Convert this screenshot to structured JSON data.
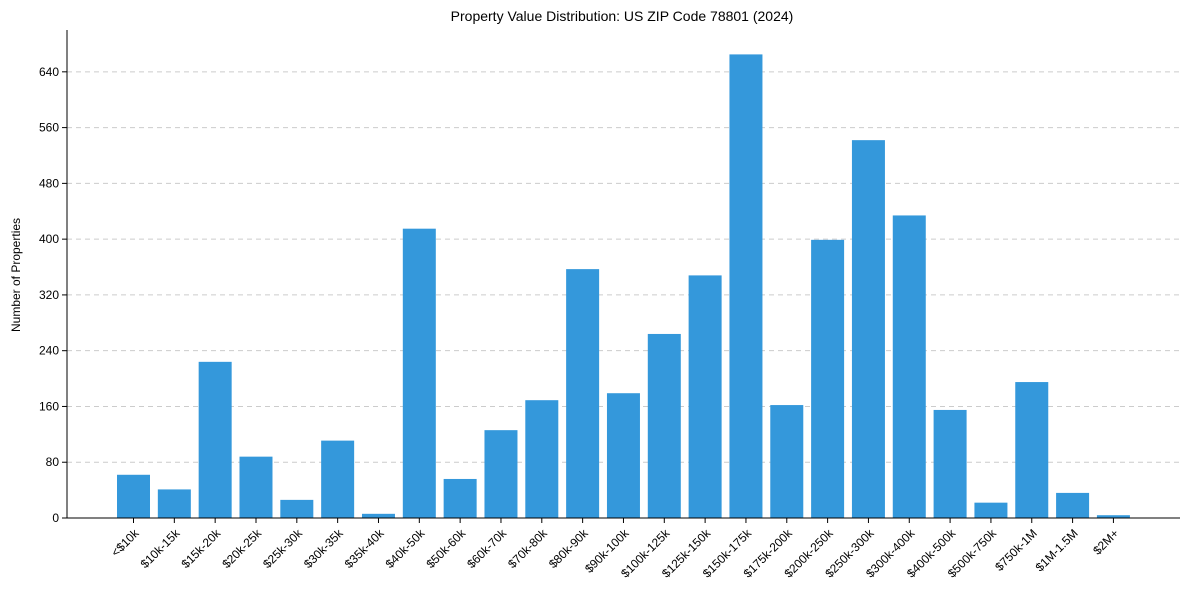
{
  "chart_data": {
    "type": "bar",
    "title": "Property Value Distribution: US ZIP Code 78801 (2024)",
    "xlabel": "",
    "ylabel": "Number of Properties",
    "ylim": [
      0,
      700
    ],
    "yticks": [
      0,
      80,
      160,
      240,
      320,
      400,
      480,
      560,
      640
    ],
    "grid": "y-dashed",
    "bar_color": "#3498db",
    "categories": [
      "<$10k",
      "$10k-15k",
      "$15k-20k",
      "$20k-25k",
      "$25k-30k",
      "$30k-35k",
      "$35k-40k",
      "$40k-50k",
      "$50k-60k",
      "$60k-70k",
      "$70k-80k",
      "$80k-90k",
      "$90k-100k",
      "$100k-125k",
      "$125k-150k",
      "$150k-175k",
      "$175k-200k",
      "$200k-250k",
      "$250k-300k",
      "$300k-400k",
      "$400k-500k",
      "$500k-750k",
      "$750k-1M",
      "$1M-1.5M",
      "$2M+"
    ],
    "values": [
      62,
      41,
      224,
      88,
      26,
      111,
      6,
      415,
      56,
      126,
      169,
      357,
      179,
      264,
      348,
      665,
      162,
      399,
      542,
      434,
      155,
      22,
      195,
      36,
      4
    ]
  }
}
